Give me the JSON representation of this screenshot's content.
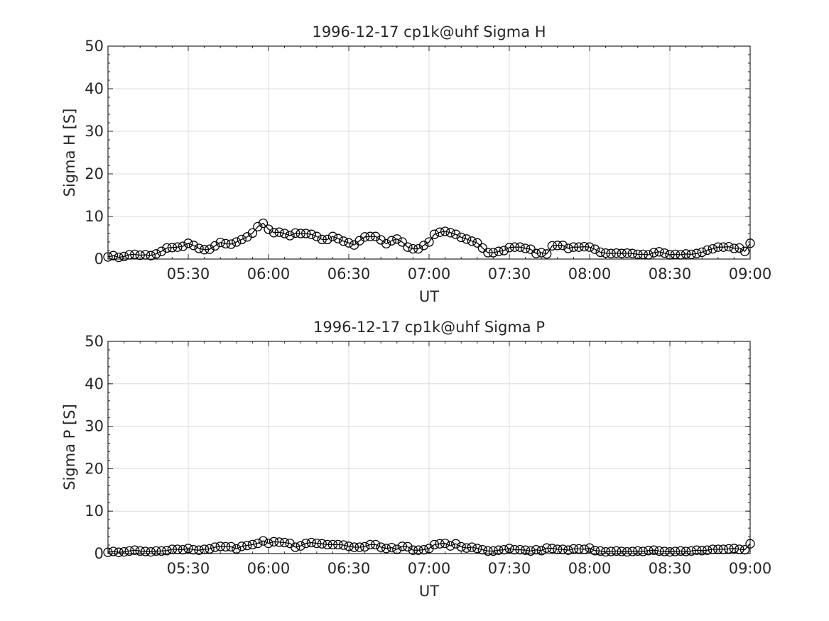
{
  "chart_data": [
    {
      "type": "line",
      "title": "1996-12-17  cp1k@uhf Sigma H",
      "xlabel": "UT",
      "ylabel": "Sigma H [S]",
      "x_range": [
        "05:00",
        "09:00"
      ],
      "ylim": [
        0,
        50
      ],
      "yticks": [
        "0",
        "10",
        "20",
        "30",
        "40",
        "50"
      ],
      "xticks": [
        "05:30",
        "06:00",
        "06:30",
        "07:00",
        "07:30",
        "08:00",
        "08:30",
        "09:00"
      ],
      "grid": true,
      "marker": "circle",
      "series": [
        {
          "x": [
            "05:00",
            "05:02",
            "05:04",
            "05:06",
            "05:08",
            "05:10",
            "05:12",
            "05:14",
            "05:16",
            "05:18",
            "05:20",
            "05:22",
            "05:24",
            "05:26",
            "05:28",
            "05:30",
            "05:32",
            "05:34",
            "05:36",
            "05:38",
            "05:40",
            "05:42",
            "05:44",
            "05:46",
            "05:48",
            "05:50",
            "05:52",
            "05:54",
            "05:56",
            "05:58",
            "06:00",
            "06:02",
            "06:04",
            "06:06",
            "06:08",
            "06:10",
            "06:12",
            "06:14",
            "06:16",
            "06:18",
            "06:20",
            "06:22",
            "06:24",
            "06:26",
            "06:28",
            "06:30",
            "06:32",
            "06:34",
            "06:36",
            "06:38",
            "06:40",
            "06:42",
            "06:44",
            "06:46",
            "06:48",
            "06:50",
            "06:52",
            "06:54",
            "06:56",
            "06:58",
            "07:00",
            "07:02",
            "07:04",
            "07:06",
            "07:08",
            "07:10",
            "07:12",
            "07:14",
            "07:16",
            "07:18",
            "07:20",
            "07:22",
            "07:24",
            "07:26",
            "07:28",
            "07:30",
            "07:32",
            "07:34",
            "07:36",
            "07:38",
            "07:40",
            "07:42",
            "07:44",
            "07:46",
            "07:48",
            "07:50",
            "07:52",
            "07:54",
            "07:56",
            "07:58",
            "08:00",
            "08:02",
            "08:04",
            "08:06",
            "08:08",
            "08:10",
            "08:12",
            "08:14",
            "08:16",
            "08:18",
            "08:20",
            "08:22",
            "08:24",
            "08:26",
            "08:28",
            "08:30",
            "08:32",
            "08:34",
            "08:36",
            "08:38",
            "08:40",
            "08:42",
            "08:44",
            "08:46",
            "08:48",
            "08:50",
            "08:52",
            "08:54",
            "08:56",
            "08:58",
            "09:00"
          ],
          "values": [
            0.5,
            0.8,
            0.4,
            0.6,
            1.0,
            1.1,
            0.9,
            1.0,
            0.8,
            1.2,
            1.8,
            2.6,
            2.7,
            2.8,
            3.0,
            3.7,
            3.2,
            2.5,
            2.2,
            2.3,
            3.1,
            3.9,
            3.6,
            3.5,
            4.0,
            4.6,
            5.2,
            6.1,
            7.6,
            8.4,
            7.0,
            6.2,
            6.3,
            6.0,
            5.5,
            6.1,
            6.0,
            6.0,
            5.8,
            5.3,
            4.6,
            4.6,
            5.3,
            4.8,
            4.2,
            3.8,
            3.3,
            4.3,
            5.2,
            5.3,
            5.3,
            4.5,
            3.6,
            4.3,
            4.7,
            4.0,
            2.8,
            2.4,
            2.4,
            3.2,
            4.0,
            5.8,
            6.3,
            6.5,
            6.2,
            5.8,
            5.1,
            4.7,
            4.2,
            3.8,
            2.6,
            1.5,
            1.5,
            1.8,
            2.0,
            2.7,
            2.8,
            2.8,
            2.5,
            2.3,
            1.3,
            1.5,
            1.2,
            3.1,
            3.2,
            3.2,
            2.5,
            2.8,
            2.8,
            2.9,
            2.8,
            2.3,
            1.6,
            1.4,
            1.3,
            1.4,
            1.3,
            1.4,
            1.3,
            1.1,
            1.1,
            1.0,
            1.5,
            1.7,
            1.4,
            1.0,
            1.1,
            1.0,
            1.2,
            1.1,
            1.3,
            1.6,
            2.1,
            2.4,
            2.8,
            2.8,
            2.9,
            2.5,
            2.6,
            1.8,
            3.7
          ]
        }
      ]
    },
    {
      "type": "line",
      "title": "1996-12-17  cp1k@uhf Sigma P",
      "xlabel": "UT",
      "ylabel": "Sigma P [S]",
      "x_range": [
        "05:00",
        "09:00"
      ],
      "ylim": [
        0,
        50
      ],
      "yticks": [
        "0",
        "10",
        "20",
        "30",
        "40",
        "50"
      ],
      "xticks": [
        "05:30",
        "06:00",
        "06:30",
        "07:00",
        "07:30",
        "08:00",
        "08:30",
        "09:00"
      ],
      "grid": true,
      "marker": "circle",
      "series": [
        {
          "x": [
            "05:00",
            "05:02",
            "05:04",
            "05:06",
            "05:08",
            "05:10",
            "05:12",
            "05:14",
            "05:16",
            "05:18",
            "05:20",
            "05:22",
            "05:24",
            "05:26",
            "05:28",
            "05:30",
            "05:32",
            "05:34",
            "05:36",
            "05:38",
            "05:40",
            "05:42",
            "05:44",
            "05:46",
            "05:48",
            "05:50",
            "05:52",
            "05:54",
            "05:56",
            "05:58",
            "06:00",
            "06:02",
            "06:04",
            "06:06",
            "06:08",
            "06:10",
            "06:12",
            "06:14",
            "06:16",
            "06:18",
            "06:20",
            "06:22",
            "06:24",
            "06:26",
            "06:28",
            "06:30",
            "06:32",
            "06:34",
            "06:36",
            "06:38",
            "06:40",
            "06:42",
            "06:44",
            "06:46",
            "06:48",
            "06:50",
            "06:52",
            "06:54",
            "06:56",
            "06:58",
            "07:00",
            "07:02",
            "07:04",
            "07:06",
            "07:08",
            "07:10",
            "07:12",
            "07:14",
            "07:16",
            "07:18",
            "07:20",
            "07:22",
            "07:24",
            "07:26",
            "07:28",
            "07:30",
            "07:32",
            "07:34",
            "07:36",
            "07:38",
            "07:40",
            "07:42",
            "07:44",
            "07:46",
            "07:48",
            "07:50",
            "07:52",
            "07:54",
            "07:56",
            "07:58",
            "08:00",
            "08:02",
            "08:04",
            "08:06",
            "08:08",
            "08:10",
            "08:12",
            "08:14",
            "08:16",
            "08:18",
            "08:20",
            "08:22",
            "08:24",
            "08:26",
            "08:28",
            "08:30",
            "08:32",
            "08:34",
            "08:36",
            "08:38",
            "08:40",
            "08:42",
            "08:44",
            "08:46",
            "08:48",
            "08:50",
            "08:52",
            "08:54",
            "08:56",
            "08:58",
            "09:00"
          ],
          "values": [
            0.3,
            0.5,
            0.3,
            0.4,
            0.6,
            0.8,
            0.6,
            0.5,
            0.4,
            0.6,
            0.6,
            0.7,
            1.0,
            1.0,
            0.9,
            1.2,
            0.9,
            0.8,
            1.0,
            1.1,
            1.5,
            1.7,
            1.6,
            1.6,
            1.1,
            1.7,
            1.9,
            2.1,
            2.4,
            3.0,
            2.4,
            2.8,
            2.7,
            2.6,
            2.4,
            1.5,
            1.8,
            2.4,
            2.6,
            2.4,
            2.3,
            2.1,
            2.1,
            2.1,
            2.0,
            1.7,
            1.5,
            1.5,
            1.6,
            2.1,
            2.1,
            1.5,
            1.2,
            1.4,
            1.0,
            1.7,
            1.6,
            0.8,
            0.8,
            0.9,
            1.2,
            2.1,
            2.3,
            2.4,
            1.8,
            2.3,
            1.6,
            1.3,
            1.5,
            1.2,
            0.9,
            0.6,
            0.6,
            0.8,
            0.9,
            1.2,
            0.9,
            0.9,
            0.8,
            0.6,
            0.9,
            0.7,
            1.3,
            1.2,
            1.0,
            1.0,
            0.8,
            1.1,
            1.1,
            1.0,
            1.3,
            0.7,
            0.6,
            0.4,
            0.5,
            0.6,
            0.5,
            0.4,
            0.5,
            0.6,
            0.5,
            0.7,
            0.8,
            0.6,
            0.5,
            0.4,
            0.5,
            0.6,
            0.5,
            0.6,
            0.8,
            0.7,
            0.8,
            1.0,
            1.0,
            1.0,
            1.1,
            1.2,
            1.0,
            0.9,
            2.3
          ]
        }
      ]
    }
  ]
}
